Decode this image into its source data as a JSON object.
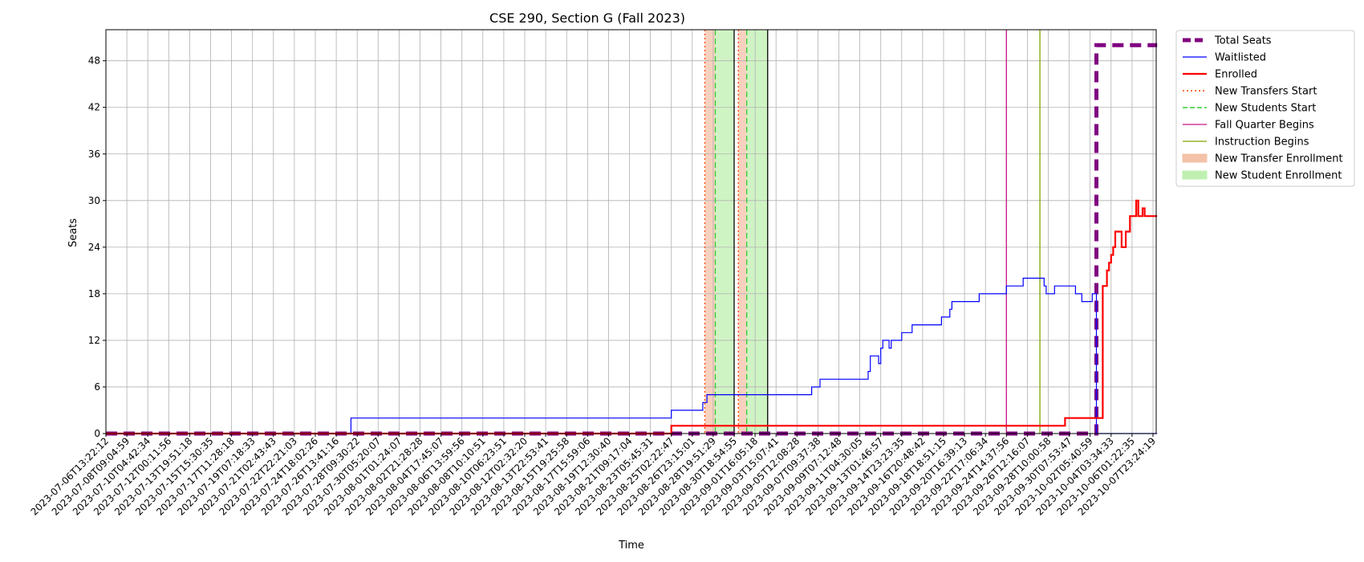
{
  "chart_data": {
    "type": "line",
    "title": "CSE 290, Section G (Fall 2023)",
    "xlabel": "Time",
    "ylabel": "Seats",
    "ylim": [
      0,
      52
    ],
    "yticks": [
      0,
      6,
      12,
      18,
      24,
      30,
      36,
      42,
      48
    ],
    "grid": true,
    "legend_placement": "outside-top-right",
    "x_tick_labels": [
      "2023-07-06T13:22:12",
      "2023-07-08T09:04:59",
      "2023-07-10T04:42:34",
      "2023-07-12T00:11:56",
      "2023-07-13T19:51:18",
      "2023-07-15T15:30:35",
      "2023-07-17T11:28:18",
      "2023-07-19T07:18:33",
      "2023-07-21T02:43:43",
      "2023-07-22T22:21:03",
      "2023-07-24T18:02:26",
      "2023-07-26T13:41:16",
      "2023-07-28T09:30:22",
      "2023-07-30T05:20:07",
      "2023-08-01T01:24:07",
      "2023-08-02T21:28:28",
      "2023-08-04T17:45:07",
      "2023-08-06T13:59:56",
      "2023-08-08T10:10:51",
      "2023-08-10T06:23:51",
      "2023-08-12T02:32:20",
      "2023-08-13T22:53:41",
      "2023-08-15T19:25:58",
      "2023-08-17T15:59:06",
      "2023-08-19T12:30:40",
      "2023-08-21T09:17:04",
      "2023-08-23T05:45:31",
      "2023-08-25T02:22:47",
      "2023-08-26T23:15:01",
      "2023-08-28T19:51:29",
      "2023-08-30T18:54:55",
      "2023-09-01T16:05:18",
      "2023-09-03T15:07:41",
      "2023-09-05T12:08:28",
      "2023-09-07T09:37:38",
      "2023-09-09T07:12:48",
      "2023-09-11T04:30:05",
      "2023-09-13T01:46:57",
      "2023-09-14T23:23:35",
      "2023-09-16T20:48:42",
      "2023-09-18T18:51:15",
      "2023-09-20T16:39:13",
      "2023-09-22T17:06:34",
      "2023-09-24T14:37:56",
      "2023-09-26T12:16:07",
      "2023-09-28T10:00:58",
      "2023-09-30T07:53:47",
      "2023-10-02T05:40:59",
      "2023-10-04T03:34:33",
      "2023-10-06T01:22:35",
      "2023-10-07T23:24:19"
    ],
    "series": [
      {
        "name": "Total Seats",
        "color": "#800080",
        "style": "dashed-thick",
        "steps": [
          [
            0,
            0
          ],
          [
            47.3,
            0
          ],
          [
            47.3,
            50
          ],
          [
            50.2,
            50
          ]
        ]
      },
      {
        "name": "Waitlisted",
        "color": "#0000ff",
        "style": "solid-thin",
        "steps": [
          [
            0,
            0
          ],
          [
            11.7,
            0
          ],
          [
            11.7,
            2
          ],
          [
            27.0,
            2
          ],
          [
            27.0,
            3
          ],
          [
            28.5,
            3
          ],
          [
            28.5,
            4
          ],
          [
            28.7,
            4
          ],
          [
            28.7,
            5
          ],
          [
            33.7,
            5
          ],
          [
            33.7,
            6
          ],
          [
            34.1,
            6
          ],
          [
            34.1,
            7
          ],
          [
            36.4,
            7
          ],
          [
            36.4,
            8
          ],
          [
            36.5,
            8
          ],
          [
            36.5,
            10
          ],
          [
            36.9,
            10
          ],
          [
            36.9,
            9
          ],
          [
            37.0,
            9
          ],
          [
            37.0,
            11
          ],
          [
            37.1,
            11
          ],
          [
            37.1,
            12
          ],
          [
            37.4,
            12
          ],
          [
            37.4,
            11
          ],
          [
            37.5,
            11
          ],
          [
            37.5,
            12
          ],
          [
            38.0,
            12
          ],
          [
            38.0,
            13
          ],
          [
            38.5,
            13
          ],
          [
            38.5,
            14
          ],
          [
            39.9,
            14
          ],
          [
            39.9,
            15
          ],
          [
            40.3,
            15
          ],
          [
            40.3,
            16
          ],
          [
            40.4,
            16
          ],
          [
            40.4,
            17
          ],
          [
            41.7,
            17
          ],
          [
            41.7,
            18
          ],
          [
            43.0,
            18
          ],
          [
            43.0,
            19
          ],
          [
            43.8,
            19
          ],
          [
            43.8,
            20
          ],
          [
            44.8,
            20
          ],
          [
            44.8,
            19
          ],
          [
            44.9,
            19
          ],
          [
            44.9,
            18
          ],
          [
            45.3,
            18
          ],
          [
            45.3,
            19
          ],
          [
            46.3,
            19
          ],
          [
            46.3,
            18
          ],
          [
            46.6,
            18
          ],
          [
            46.6,
            17
          ],
          [
            47.1,
            17
          ],
          [
            47.1,
            18
          ],
          [
            47.3,
            18
          ],
          [
            47.3,
            0
          ],
          [
            50.2,
            0
          ]
        ]
      },
      {
        "name": "Enrolled",
        "color": "#ff0000",
        "style": "solid-medium",
        "steps": [
          [
            0,
            0
          ],
          [
            27.0,
            0
          ],
          [
            27.0,
            1
          ],
          [
            45.8,
            1
          ],
          [
            45.8,
            2
          ],
          [
            47.6,
            2
          ],
          [
            47.6,
            19
          ],
          [
            47.8,
            19
          ],
          [
            47.8,
            21
          ],
          [
            47.9,
            21
          ],
          [
            47.9,
            22
          ],
          [
            48.0,
            22
          ],
          [
            48.0,
            23
          ],
          [
            48.1,
            23
          ],
          [
            48.1,
            24
          ],
          [
            48.2,
            24
          ],
          [
            48.2,
            26
          ],
          [
            48.5,
            26
          ],
          [
            48.5,
            24
          ],
          [
            48.7,
            24
          ],
          [
            48.7,
            26
          ],
          [
            48.9,
            26
          ],
          [
            48.9,
            28
          ],
          [
            49.2,
            28
          ],
          [
            49.2,
            30
          ],
          [
            49.3,
            30
          ],
          [
            49.3,
            28
          ],
          [
            49.5,
            28
          ],
          [
            49.5,
            29
          ],
          [
            49.6,
            29
          ],
          [
            49.6,
            28
          ],
          [
            50.2,
            28
          ]
        ]
      }
    ],
    "vertical_lines": [
      {
        "name": "New Transfers Start",
        "x": 28.6,
        "color": "#ff4500",
        "style": "dotted"
      },
      {
        "name": "New Transfers Start",
        "x": 30.2,
        "color": "#ff4500",
        "style": "dotted"
      },
      {
        "name": "New Students Start",
        "x": 29.1,
        "color": "#32cd32",
        "style": "dashed"
      },
      {
        "name": "New Students Start",
        "x": 30.6,
        "color": "#32cd32",
        "style": "dashed"
      },
      {
        "name": "Fall Quarter Begins",
        "x": 43.0,
        "color": "#c71585",
        "style": "solid"
      },
      {
        "name": "Instruction Begins",
        "x": 44.6,
        "color": "#7fa500",
        "style": "solid"
      },
      {
        "name": "period-boundary",
        "x": 30.0,
        "color": "#000000",
        "style": "solid"
      },
      {
        "name": "period-boundary",
        "x": 31.6,
        "color": "#000000",
        "style": "solid"
      }
    ],
    "shaded_regions": [
      {
        "name": "New Transfer Enrollment",
        "x0": 28.6,
        "x1": 29.1,
        "color": "#f4c2a8"
      },
      {
        "name": "New Transfer Enrollment",
        "x0": 30.2,
        "x1": 30.6,
        "color": "#f4c2a8"
      },
      {
        "name": "New Student Enrollment",
        "x0": 29.1,
        "x1": 30.0,
        "color": "#bff0b0"
      },
      {
        "name": "New Student Enrollment",
        "x0": 30.6,
        "x1": 31.6,
        "color": "#bff0b0"
      }
    ],
    "legend": [
      {
        "label": "Total Seats",
        "color": "#800080",
        "kind": "dashed-thick"
      },
      {
        "label": "Waitlisted",
        "color": "#0000ff",
        "kind": "line-thin"
      },
      {
        "label": "Enrolled",
        "color": "#ff0000",
        "kind": "line-medium"
      },
      {
        "label": "New Transfers Start",
        "color": "#ff4500",
        "kind": "dotted"
      },
      {
        "label": "New Students Start",
        "color": "#32cd32",
        "kind": "dashed"
      },
      {
        "label": "Fall Quarter Begins",
        "color": "#c71585",
        "kind": "line-thin"
      },
      {
        "label": "Instruction Begins",
        "color": "#7fa500",
        "kind": "line-thin"
      },
      {
        "label": "New Transfer Enrollment",
        "color": "#f4c2a8",
        "kind": "patch"
      },
      {
        "label": "New Student Enrollment",
        "color": "#bff0b0",
        "kind": "patch"
      }
    ]
  }
}
